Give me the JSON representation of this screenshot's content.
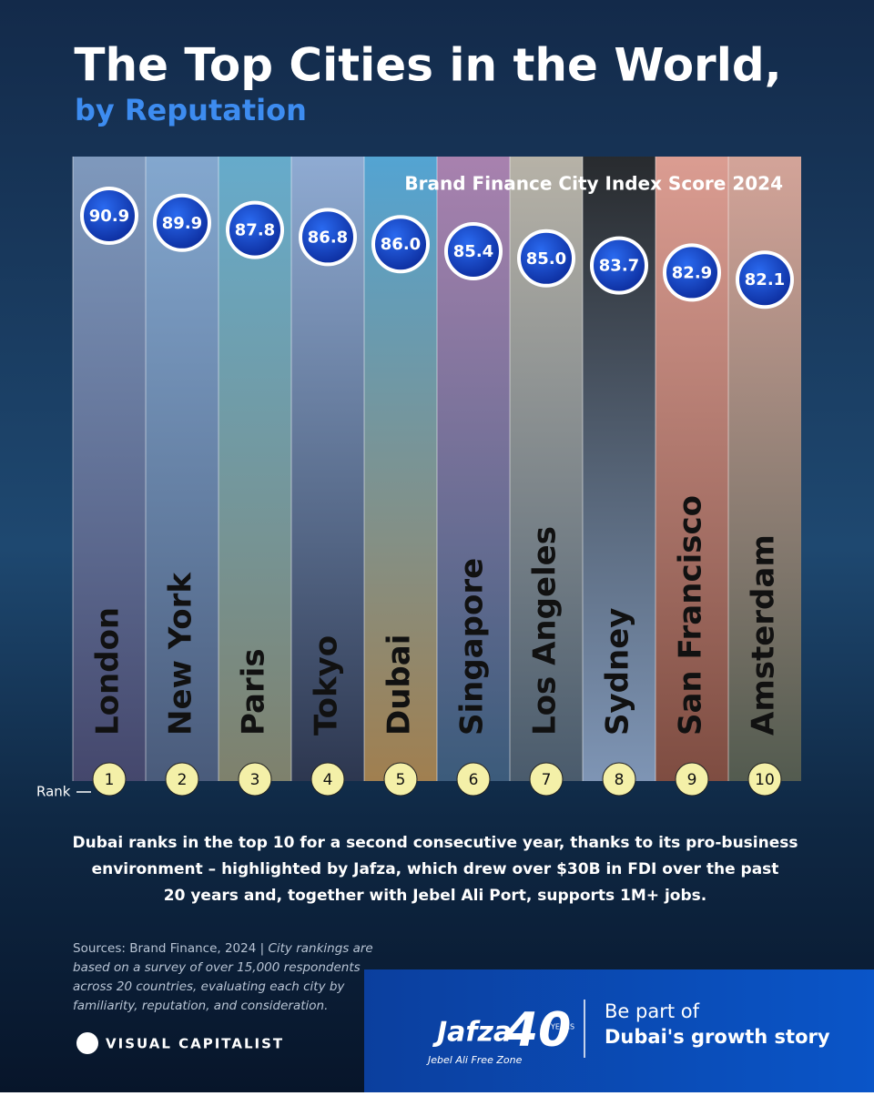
{
  "header": {
    "title": "The Top Cities in the World,",
    "subtitle": "by Reputation"
  },
  "chart": {
    "label": "Brand Finance City Index Score 2024",
    "rank_label": "Rank",
    "cities": [
      {
        "rank": "1",
        "name": "London",
        "score": "90.9"
      },
      {
        "rank": "2",
        "name": "New York",
        "score": "89.9"
      },
      {
        "rank": "3",
        "name": "Paris",
        "score": "87.8"
      },
      {
        "rank": "4",
        "name": "Tokyo",
        "score": "86.8"
      },
      {
        "rank": "5",
        "name": "Dubai",
        "score": "86.0"
      },
      {
        "rank": "6",
        "name": "Singapore",
        "score": "85.4"
      },
      {
        "rank": "7",
        "name": "Los Angeles",
        "score": "85.0"
      },
      {
        "rank": "8",
        "name": "Sydney",
        "score": "83.7"
      },
      {
        "rank": "9",
        "name": "San Francisco",
        "score": "82.9"
      },
      {
        "rank": "10",
        "name": "Amsterdam",
        "score": "82.1"
      }
    ]
  },
  "note": {
    "lines": [
      "Dubai ranks in the top 10 for a second consecutive year, thanks to its pro-business",
      "environment – highlighted by Jafza, which drew over $30B in FDI over the past",
      "20 years and, together with Jebel Ali Port, supports 1M+ jobs."
    ]
  },
  "footer": {
    "sources_lead": "Sources: Brand Finance, 2024 |",
    "sources_lines": [
      " City rankings are",
      "based on a survey of over 15,000 respondents",
      "across 20 countries, evaluating each city by",
      "familiarity, reputation, and consideration."
    ],
    "brand": "VISUAL CAPITALIST",
    "sponsor_name": "Jafza",
    "sponsor_years": "YEARS",
    "sponsor_sub": "Jebel Ali Free Zone",
    "cta_1": "Be part of",
    "cta_2": "Dubai's growth story"
  }
}
